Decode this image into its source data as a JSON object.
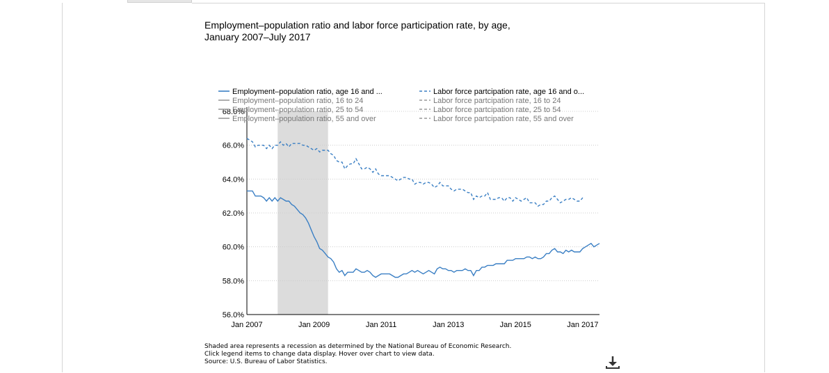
{
  "title_line1": "Employment–population ratio and labor force participation rate, by age,",
  "title_line2": "January 2007–July 2017",
  "notes": [
    "Shaded area represents a recession as determined by the National Bureau of Economic Research.",
    "Click legend items to change data display. Hover over chart to view data.",
    "Source: U.S. Bureau of Labor Statistics."
  ],
  "download_icon": "download-icon",
  "colors": {
    "series": "#3a7fc4",
    "inactive": "#999999",
    "recession": "#dcdcdc",
    "grid": "#cccccc"
  },
  "chart_data": {
    "type": "line",
    "x_ticks": [
      "Jan 2007",
      "Jan 2009",
      "Jan 2011",
      "Jan 2013",
      "Jan 2015",
      "Jan 2017"
    ],
    "y_ticks": [
      "56.0%",
      "58.0%",
      "60.0%",
      "62.0%",
      "64.0%",
      "66.0%",
      "68.0%"
    ],
    "xlim": [
      "2007-01",
      "2017-07"
    ],
    "ylim": [
      56,
      68
    ],
    "grid": "horizontal dotted",
    "legend_placement": "top",
    "recession": [
      "2007-12",
      "2009-06"
    ],
    "legend": [
      {
        "label": "Employment–population ratio, age 16 and ...",
        "style": "solid",
        "active": true
      },
      {
        "label": "Labor force partcipation rate, age 16 and o...",
        "style": "dashed",
        "active": true
      },
      {
        "label": "Employment–population ratio, 16 to 24",
        "style": "solid",
        "active": false
      },
      {
        "label": "Labor force partcipation rate, 16 to 24",
        "style": "dashed",
        "active": false
      },
      {
        "label": "Employment–population ratio, 25 to 54",
        "style": "solid",
        "active": false
      },
      {
        "label": "Labor force partcipation rate, 25 to 54",
        "style": "dashed",
        "active": false
      },
      {
        "label": "Employment–population ratio, 55 and over",
        "style": "solid",
        "active": false
      },
      {
        "label": "Labor force partcipation rate, 55 and over",
        "style": "dashed",
        "active": false
      }
    ],
    "series": [
      {
        "name": "Employment–population ratio, age 16 and over",
        "style": "solid",
        "points": [
          [
            "2007-01",
            63.3
          ],
          [
            "2007-02",
            63.3
          ],
          [
            "2007-03",
            63.3
          ],
          [
            "2007-04",
            63.0
          ],
          [
            "2007-05",
            63.0
          ],
          [
            "2007-06",
            63.0
          ],
          [
            "2007-07",
            62.9
          ],
          [
            "2007-08",
            62.7
          ],
          [
            "2007-09",
            62.9
          ],
          [
            "2007-10",
            62.7
          ],
          [
            "2007-11",
            62.9
          ],
          [
            "2007-12",
            62.7
          ],
          [
            "2008-01",
            62.9
          ],
          [
            "2008-02",
            62.8
          ],
          [
            "2008-03",
            62.7
          ],
          [
            "2008-04",
            62.7
          ],
          [
            "2008-05",
            62.5
          ],
          [
            "2008-06",
            62.4
          ],
          [
            "2008-07",
            62.2
          ],
          [
            "2008-08",
            62.0
          ],
          [
            "2008-09",
            61.9
          ],
          [
            "2008-10",
            61.7
          ],
          [
            "2008-11",
            61.4
          ],
          [
            "2008-12",
            61.0
          ],
          [
            "2009-01",
            60.6
          ],
          [
            "2009-02",
            60.3
          ],
          [
            "2009-03",
            59.9
          ],
          [
            "2009-04",
            59.8
          ],
          [
            "2009-05",
            59.6
          ],
          [
            "2009-06",
            59.4
          ],
          [
            "2009-07",
            59.3
          ],
          [
            "2009-08",
            59.1
          ],
          [
            "2009-09",
            58.7
          ],
          [
            "2009-10",
            58.5
          ],
          [
            "2009-11",
            58.6
          ],
          [
            "2009-12",
            58.3
          ],
          [
            "2010-01",
            58.5
          ],
          [
            "2010-02",
            58.5
          ],
          [
            "2010-03",
            58.5
          ],
          [
            "2010-04",
            58.7
          ],
          [
            "2010-05",
            58.6
          ],
          [
            "2010-06",
            58.5
          ],
          [
            "2010-07",
            58.5
          ],
          [
            "2010-08",
            58.6
          ],
          [
            "2010-09",
            58.5
          ],
          [
            "2010-10",
            58.3
          ],
          [
            "2010-11",
            58.2
          ],
          [
            "2010-12",
            58.3
          ],
          [
            "2011-01",
            58.4
          ],
          [
            "2011-02",
            58.4
          ],
          [
            "2011-03",
            58.4
          ],
          [
            "2011-04",
            58.4
          ],
          [
            "2011-05",
            58.3
          ],
          [
            "2011-06",
            58.2
          ],
          [
            "2011-07",
            58.2
          ],
          [
            "2011-08",
            58.3
          ],
          [
            "2011-09",
            58.4
          ],
          [
            "2011-10",
            58.4
          ],
          [
            "2011-11",
            58.5
          ],
          [
            "2011-12",
            58.6
          ],
          [
            "2012-01",
            58.5
          ],
          [
            "2012-02",
            58.6
          ],
          [
            "2012-03",
            58.5
          ],
          [
            "2012-04",
            58.4
          ],
          [
            "2012-05",
            58.5
          ],
          [
            "2012-06",
            58.6
          ],
          [
            "2012-07",
            58.5
          ],
          [
            "2012-08",
            58.4
          ],
          [
            "2012-09",
            58.7
          ],
          [
            "2012-10",
            58.8
          ],
          [
            "2012-11",
            58.7
          ],
          [
            "2012-12",
            58.7
          ],
          [
            "2013-01",
            58.6
          ],
          [
            "2013-02",
            58.6
          ],
          [
            "2013-03",
            58.5
          ],
          [
            "2013-04",
            58.6
          ],
          [
            "2013-05",
            58.6
          ],
          [
            "2013-06",
            58.6
          ],
          [
            "2013-07",
            58.7
          ],
          [
            "2013-08",
            58.6
          ],
          [
            "2013-09",
            58.6
          ],
          [
            "2013-10",
            58.3
          ],
          [
            "2013-11",
            58.6
          ],
          [
            "2013-12",
            58.6
          ],
          [
            "2014-01",
            58.8
          ],
          [
            "2014-02",
            58.8
          ],
          [
            "2014-03",
            58.9
          ],
          [
            "2014-04",
            58.9
          ],
          [
            "2014-05",
            58.9
          ],
          [
            "2014-06",
            59.0
          ],
          [
            "2014-07",
            59.0
          ],
          [
            "2014-08",
            59.0
          ],
          [
            "2014-09",
            59.0
          ],
          [
            "2014-10",
            59.2
          ],
          [
            "2014-11",
            59.2
          ],
          [
            "2014-12",
            59.2
          ],
          [
            "2015-01",
            59.3
          ],
          [
            "2015-02",
            59.3
          ],
          [
            "2015-03",
            59.3
          ],
          [
            "2015-04",
            59.3
          ],
          [
            "2015-05",
            59.4
          ],
          [
            "2015-06",
            59.4
          ],
          [
            "2015-07",
            59.3
          ],
          [
            "2015-08",
            59.4
          ],
          [
            "2015-09",
            59.3
          ],
          [
            "2015-10",
            59.3
          ],
          [
            "2015-11",
            59.4
          ],
          [
            "2015-12",
            59.6
          ],
          [
            "2016-01",
            59.6
          ],
          [
            "2016-02",
            59.8
          ],
          [
            "2016-03",
            59.9
          ],
          [
            "2016-04",
            59.7
          ],
          [
            "2016-05",
            59.7
          ],
          [
            "2016-06",
            59.6
          ],
          [
            "2016-07",
            59.8
          ],
          [
            "2016-08",
            59.7
          ],
          [
            "2016-09",
            59.8
          ],
          [
            "2016-10",
            59.7
          ],
          [
            "2016-11",
            59.7
          ],
          [
            "2016-12",
            59.7
          ],
          [
            "2017-01",
            59.9
          ],
          [
            "2017-02",
            60.0
          ],
          [
            "2017-03",
            60.1
          ],
          [
            "2017-04",
            60.2
          ],
          [
            "2017-05",
            60.0
          ],
          [
            "2017-06",
            60.1
          ],
          [
            "2017-07",
            60.2
          ]
        ]
      },
      {
        "name": "Labor force participation rate, age 16 and over",
        "style": "dashed",
        "points": [
          [
            "2007-01",
            66.4
          ],
          [
            "2007-02",
            66.3
          ],
          [
            "2007-03",
            66.2
          ],
          [
            "2007-04",
            65.9
          ],
          [
            "2007-05",
            66.0
          ],
          [
            "2007-06",
            66.0
          ],
          [
            "2007-07",
            66.0
          ],
          [
            "2007-08",
            65.8
          ],
          [
            "2007-09",
            66.0
          ],
          [
            "2007-10",
            65.8
          ],
          [
            "2007-11",
            66.0
          ],
          [
            "2007-12",
            66.0
          ],
          [
            "2008-01",
            66.2
          ],
          [
            "2008-02",
            66.0
          ],
          [
            "2008-03",
            66.1
          ],
          [
            "2008-04",
            65.9
          ],
          [
            "2008-05",
            66.1
          ],
          [
            "2008-06",
            66.1
          ],
          [
            "2008-07",
            66.1
          ],
          [
            "2008-08",
            66.1
          ],
          [
            "2008-09",
            66.0
          ],
          [
            "2008-10",
            66.0
          ],
          [
            "2008-11",
            65.9
          ],
          [
            "2008-12",
            65.8
          ],
          [
            "2009-01",
            65.7
          ],
          [
            "2009-02",
            65.8
          ],
          [
            "2009-03",
            65.6
          ],
          [
            "2009-04",
            65.7
          ],
          [
            "2009-05",
            65.7
          ],
          [
            "2009-06",
            65.7
          ],
          [
            "2009-07",
            65.5
          ],
          [
            "2009-08",
            65.4
          ],
          [
            "2009-09",
            65.1
          ],
          [
            "2009-10",
            65.0
          ],
          [
            "2009-11",
            65.0
          ],
          [
            "2009-12",
            64.6
          ],
          [
            "2010-01",
            64.8
          ],
          [
            "2010-02",
            64.9
          ],
          [
            "2010-03",
            64.9
          ],
          [
            "2010-04",
            65.2
          ],
          [
            "2010-05",
            64.9
          ],
          [
            "2010-06",
            64.6
          ],
          [
            "2010-07",
            64.6
          ],
          [
            "2010-08",
            64.7
          ],
          [
            "2010-09",
            64.6
          ],
          [
            "2010-10",
            64.4
          ],
          [
            "2010-11",
            64.6
          ],
          [
            "2010-12",
            64.3
          ],
          [
            "2011-01",
            64.2
          ],
          [
            "2011-02",
            64.2
          ],
          [
            "2011-03",
            64.2
          ],
          [
            "2011-04",
            64.2
          ],
          [
            "2011-05",
            64.1
          ],
          [
            "2011-06",
            64.0
          ],
          [
            "2011-07",
            63.9
          ],
          [
            "2011-08",
            64.0
          ],
          [
            "2011-09",
            64.1
          ],
          [
            "2011-10",
            64.1
          ],
          [
            "2011-11",
            64.0
          ],
          [
            "2011-12",
            64.0
          ],
          [
            "2012-01",
            63.7
          ],
          [
            "2012-02",
            63.8
          ],
          [
            "2012-03",
            63.8
          ],
          [
            "2012-04",
            63.7
          ],
          [
            "2012-05",
            63.8
          ],
          [
            "2012-06",
            63.8
          ],
          [
            "2012-07",
            63.7
          ],
          [
            "2012-08",
            63.5
          ],
          [
            "2012-09",
            63.6
          ],
          [
            "2012-10",
            63.8
          ],
          [
            "2012-11",
            63.6
          ],
          [
            "2012-12",
            63.6
          ],
          [
            "2013-01",
            63.6
          ],
          [
            "2013-02",
            63.4
          ],
          [
            "2013-03",
            63.3
          ],
          [
            "2013-04",
            63.4
          ],
          [
            "2013-05",
            63.4
          ],
          [
            "2013-06",
            63.4
          ],
          [
            "2013-07",
            63.3
          ],
          [
            "2013-08",
            63.2
          ],
          [
            "2013-09",
            63.2
          ],
          [
            "2013-10",
            62.8
          ],
          [
            "2013-11",
            63.0
          ],
          [
            "2013-12",
            62.9
          ],
          [
            "2014-01",
            63.0
          ],
          [
            "2014-02",
            63.0
          ],
          [
            "2014-03",
            63.2
          ],
          [
            "2014-04",
            62.8
          ],
          [
            "2014-05",
            62.8
          ],
          [
            "2014-06",
            62.8
          ],
          [
            "2014-07",
            62.9
          ],
          [
            "2014-08",
            62.9
          ],
          [
            "2014-09",
            62.7
          ],
          [
            "2014-10",
            62.9
          ],
          [
            "2014-11",
            62.9
          ],
          [
            "2014-12",
            62.7
          ],
          [
            "2015-01",
            62.9
          ],
          [
            "2015-02",
            62.8
          ],
          [
            "2015-03",
            62.7
          ],
          [
            "2015-04",
            62.8
          ],
          [
            "2015-05",
            62.9
          ],
          [
            "2015-06",
            62.6
          ],
          [
            "2015-07",
            62.6
          ],
          [
            "2015-08",
            62.6
          ],
          [
            "2015-09",
            62.4
          ],
          [
            "2015-10",
            62.5
          ],
          [
            "2015-11",
            62.5
          ],
          [
            "2015-12",
            62.7
          ],
          [
            "2016-01",
            62.7
          ],
          [
            "2016-02",
            62.9
          ],
          [
            "2016-03",
            63.0
          ],
          [
            "2016-04",
            62.8
          ],
          [
            "2016-05",
            62.6
          ],
          [
            "2016-06",
            62.7
          ],
          [
            "2016-07",
            62.8
          ],
          [
            "2016-08",
            62.8
          ],
          [
            "2016-09",
            62.9
          ],
          [
            "2016-10",
            62.8
          ],
          [
            "2016-11",
            62.7
          ],
          [
            "2016-12",
            62.7
          ],
          [
            "2017-01",
            62.9
          ]
        ]
      }
    ]
  }
}
